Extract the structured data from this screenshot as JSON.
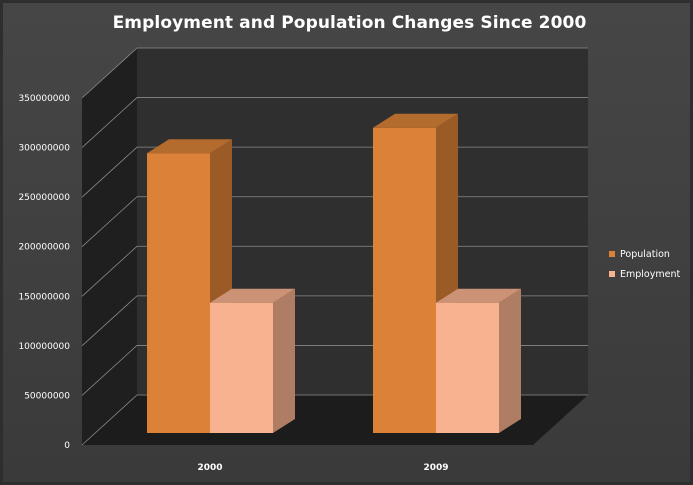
{
  "chart_data": {
    "type": "bar",
    "title": "Employment and Population Changes Since 2000",
    "categories": [
      "2000",
      "2009"
    ],
    "series": [
      {
        "name": "Population",
        "values": [
          281400000,
          307000000
        ],
        "color": "#dc8238"
      },
      {
        "name": "Employment",
        "values": [
          131000000,
          131000000
        ],
        "color": "#f9b28f"
      }
    ],
    "ylim": [
      0,
      350000000
    ],
    "yticks": [
      "0",
      "50000000",
      "100000000",
      "150000000",
      "200000000",
      "250000000",
      "300000000",
      "350000000"
    ],
    "grid": true,
    "legend": "right",
    "three_d": true
  }
}
